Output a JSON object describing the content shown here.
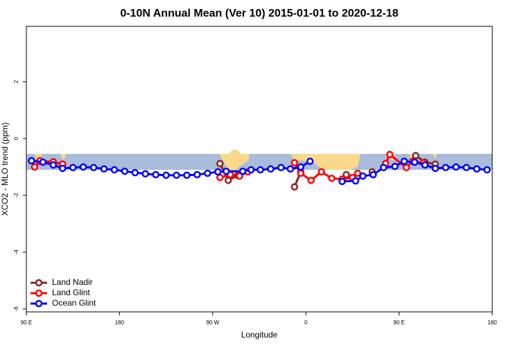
{
  "chart_data": {
    "type": "line",
    "title": "0-10N Annual Mean (Ver 10)   2015-01-01 to 2020-12-18",
    "xlabel": "Longitude",
    "ylabel": "XCO2 - MLO trend (ppm)",
    "xlim": [
      90,
      540
    ],
    "ylim": [
      -6.1,
      3.95
    ],
    "xticks": [
      {
        "value": 90,
        "label": "90 E"
      },
      180,
      {
        "value": 270,
        "label": "90 W"
      },
      {
        "value": 360,
        "label": "0"
      },
      {
        "value": 450,
        "label": "90 E"
      },
      {
        "value": 540,
        "label": "180"
      }
    ],
    "yticks": [
      -6,
      -4,
      -2,
      0,
      2
    ],
    "legend": "bottomleft",
    "series": [
      {
        "name": "Land Nadir",
        "color": "#8b2323",
        "x": [
          103,
          116,
          125,
          null,
          277,
          285,
          294,
          null,
          349,
          355,
          null,
          399,
          null,
          424,
          null,
          466,
          475,
          485
        ],
        "values": [
          -0.8,
          -0.83,
          -0.9,
          null,
          -0.88,
          -1.47,
          -1.3,
          null,
          -1.7,
          -1.17,
          null,
          -1.27,
          null,
          -1.17,
          null,
          -0.6,
          -0.83,
          -0.9
        ]
      },
      {
        "name": "Land Glint",
        "color": "#ff0000",
        "x": [
          98,
          103,
          116,
          125,
          null,
          277,
          287,
          296,
          304,
          null,
          349,
          355,
          365,
          375,
          385,
          395,
          405,
          410,
          null,
          437,
          441,
          457,
          463,
          474
        ],
        "values": [
          -1.0,
          -0.78,
          -0.82,
          -0.9,
          null,
          -1.37,
          -1.27,
          -1.32,
          -1.17,
          null,
          -0.85,
          -1.22,
          -1.47,
          -1.17,
          -1.4,
          -1.43,
          -1.37,
          -1.22,
          null,
          -0.88,
          -0.56,
          -1.02,
          -0.8,
          -0.85
        ]
      },
      {
        "name": "Ocean Glint",
        "color": "#0000ff",
        "x": [
          95,
          106,
          116,
          125,
          135,
          145,
          155,
          165,
          175,
          185,
          195,
          205,
          215,
          225,
          235,
          245,
          255,
          265,
          275,
          283,
          299,
          307,
          316,
          326,
          336,
          345,
          355,
          364,
          null,
          395,
          408,
          415,
          425,
          435,
          446,
          455,
          465,
          475,
          485,
          495,
          505,
          515,
          525,
          535
        ],
        "values": [
          -0.78,
          -0.83,
          -0.93,
          -1.05,
          -1.02,
          -1.0,
          -1.02,
          -1.07,
          -1.1,
          -1.15,
          -1.2,
          -1.24,
          -1.27,
          -1.29,
          -1.29,
          -1.29,
          -1.27,
          -1.22,
          -1.17,
          -1.15,
          -1.15,
          -1.1,
          -1.1,
          -1.07,
          -1.02,
          -1.07,
          -1.0,
          -0.8,
          null,
          -1.51,
          -1.49,
          -1.32,
          -1.27,
          -1.02,
          -0.98,
          -0.8,
          -0.83,
          -0.93,
          -1.05,
          -1.02,
          -1.0,
          -1.02,
          -1.07,
          -1.1
        ]
      }
    ]
  }
}
